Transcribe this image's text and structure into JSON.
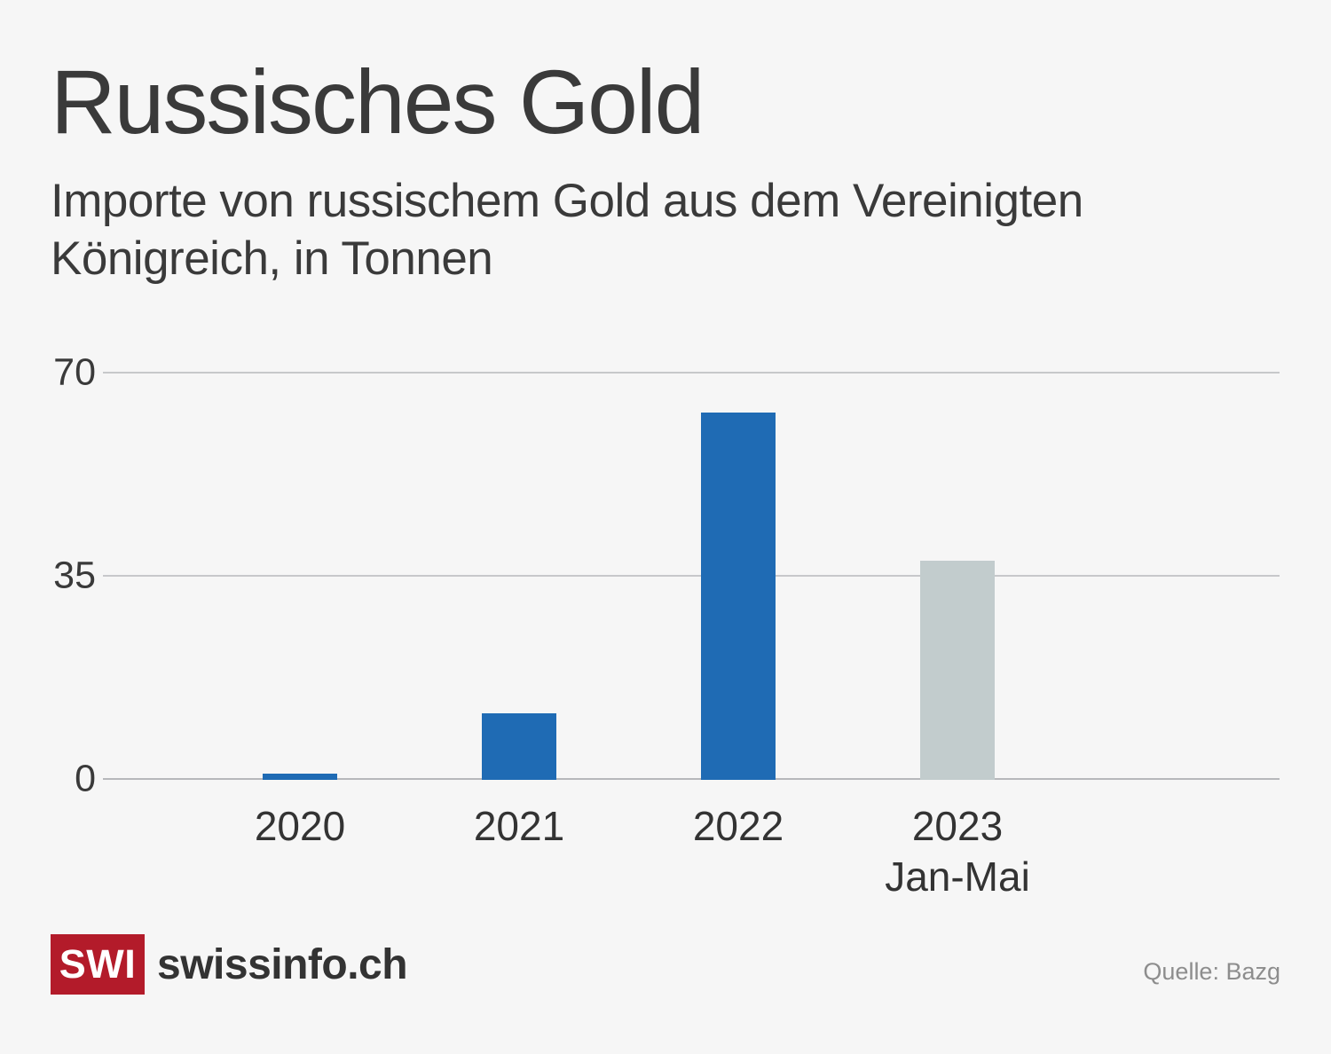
{
  "page": {
    "background_color": "#f6f6f6"
  },
  "header": {
    "title": "Russisches Gold",
    "subtitle": "Importe von russischem Gold aus dem Vereinigten Königreich, in Tonnen"
  },
  "chart_data": {
    "type": "bar",
    "title": "Russisches Gold",
    "subtitle": "Importe von russischem Gold aus dem Vereinigten Königreich, in Tonnen",
    "unit": "Tonnen",
    "categories": [
      "2020",
      "2021",
      "2022",
      "2023"
    ],
    "category_sublabels": [
      "",
      "",
      "",
      "Jan-Mai"
    ],
    "values": [
      1,
      11.5,
      63.3,
      37.7
    ],
    "bar_colors": [
      "#1f6bb4",
      "#1f6bb4",
      "#1f6bb4",
      "#c2cccd"
    ],
    "ylim": [
      0,
      70
    ],
    "yticks": [
      0,
      35,
      70
    ],
    "grid": true,
    "legend": false,
    "gridline_color": "#c7c8ca"
  },
  "footer": {
    "logo_text": "SWI",
    "logo_color": "#b31b2a",
    "brand": "swissinfo.ch",
    "source": "Quelle: Bazg"
  }
}
